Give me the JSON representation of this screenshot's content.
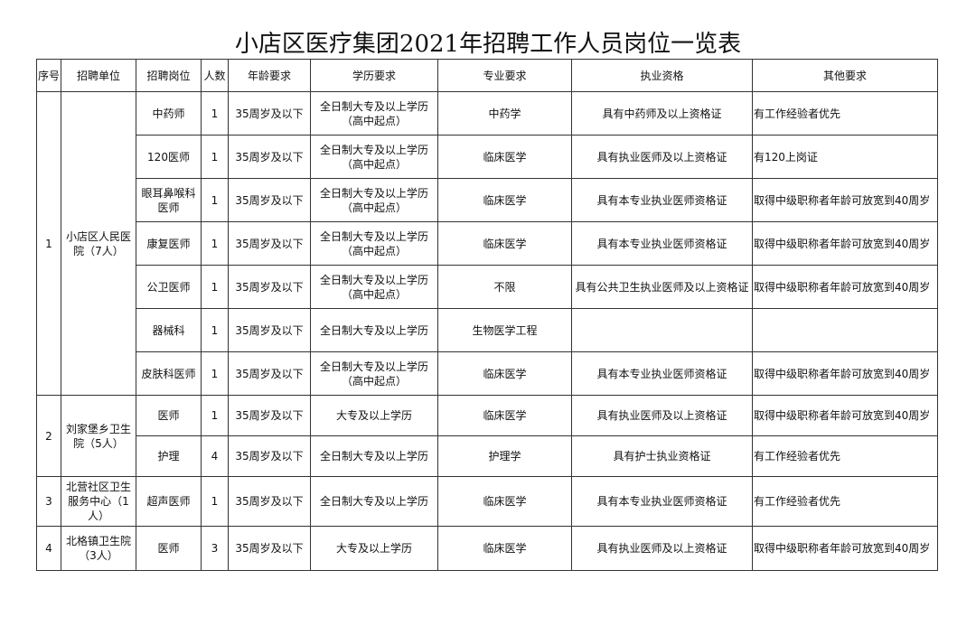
{
  "title": "小店区医疗集团2021年招聘工作人员岗位一览表",
  "headers": [
    "序号",
    "招聘单位",
    "招聘岗位",
    "人数",
    "年龄要求",
    "学历要求",
    "专业要求",
    "执业资格",
    "其他要求"
  ],
  "units": [
    {
      "no": "1",
      "name": "小店区人民医院（7人）",
      "positions": [
        {
          "post": "中药师",
          "count": "1",
          "age": "35周岁及以下",
          "edu": "全日制大专及以上学历\n（高中起点）",
          "major": "中药学",
          "cert": "具有中药师及以上资格证",
          "other": "有工作经验者优先"
        },
        {
          "post": "120医师",
          "count": "1",
          "age": "35周岁及以下",
          "edu": "全日制大专及以上学历\n（高中起点）",
          "major": "临床医学",
          "cert": "具有执业医师及以上资格证",
          "other": "有120上岗证"
        },
        {
          "post": "眼耳鼻喉科医师",
          "count": "1",
          "age": "35周岁及以下",
          "edu": "全日制大专及以上学历\n（高中起点）",
          "major": "临床医学",
          "cert": "具有本专业执业医师资格证",
          "other": "取得中级职称者年龄可放宽到40周岁"
        },
        {
          "post": "康复医师",
          "count": "1",
          "age": "35周岁及以下",
          "edu": "全日制大专及以上学历\n（高中起点）",
          "major": "临床医学",
          "cert": "具有本专业执业医师资格证",
          "other": "取得中级职称者年龄可放宽到40周岁"
        },
        {
          "post": "公卫医师",
          "count": "1",
          "age": "35周岁及以下",
          "edu": "全日制大专及以上学历\n（高中起点）",
          "major": "不限",
          "cert": "具有公共卫生执业医师及以上资格证",
          "other": "取得中级职称者年龄可放宽到40周岁"
        },
        {
          "post": "器械科",
          "count": "1",
          "age": "35周岁及以下",
          "edu": "全日制大专及以上学历",
          "major": "生物医学工程",
          "cert": "",
          "other": ""
        },
        {
          "post": "皮肤科医师",
          "count": "1",
          "age": "35周岁及以下",
          "edu": "全日制大专及以上学历\n（高中起点）",
          "major": "临床医学",
          "cert": "具有本专业执业医师资格证",
          "other": "取得中级职称者年龄可放宽到40周岁"
        }
      ]
    },
    {
      "no": "2",
      "name": "刘家堡乡卫生院（5人）",
      "positions": [
        {
          "post": "医师",
          "count": "1",
          "age": "35周岁及以下",
          "edu": "大专及以上学历",
          "major": "临床医学",
          "cert": "具有执业医师及以上资格证",
          "other": "取得中级职称者年龄可放宽到40周岁"
        },
        {
          "post": "护理",
          "count": "4",
          "age": "35周岁及以下",
          "edu": "全日制大专及以上学历",
          "major": "护理学",
          "cert": "具有护士执业资格证",
          "other": "有工作经验者优先"
        }
      ]
    },
    {
      "no": "3",
      "name": "北营社区卫生服务中心（1人）",
      "positions": [
        {
          "post": "超声医师",
          "count": "1",
          "age": "35周岁及以下",
          "edu": "全日制大专及以上学历",
          "major": "临床医学",
          "cert": "具有本专业执业医师资格证",
          "other": "有工作经验者优先"
        }
      ]
    },
    {
      "no": "4",
      "name": "北格镇卫生院（3人）",
      "positions": [
        {
          "post": "医师",
          "count": "3",
          "age": "35周岁及以下",
          "edu": "大专及以上学历",
          "major": "临床医学",
          "cert": "具有执业医师及以上资格证",
          "other": "取得中级职称者年龄可放宽到40周岁"
        }
      ]
    }
  ]
}
